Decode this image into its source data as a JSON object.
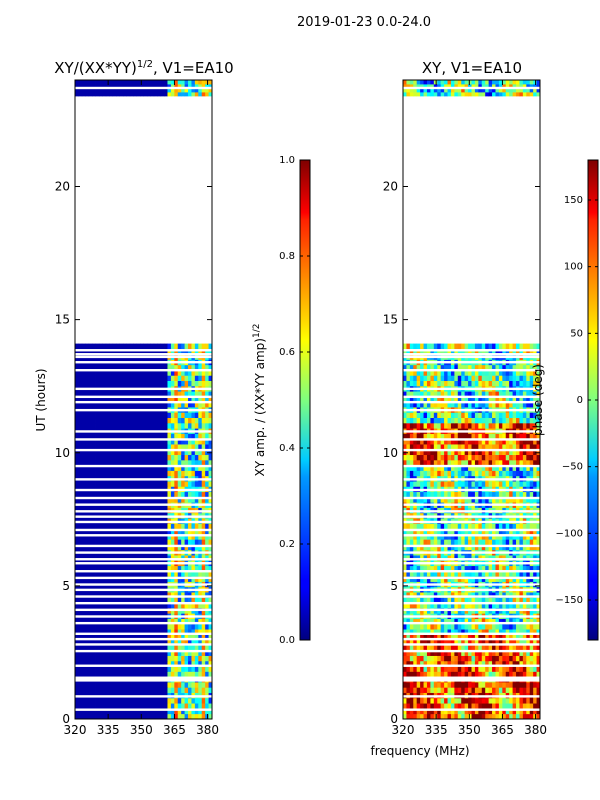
{
  "figure_title": "2019-01-23 0.0-24.0",
  "shared_xlabel": "frequency (MHz)",
  "chart_data": [
    {
      "type": "heatmap",
      "title": "XY/(XX*YY)^(1/2), V1=EA10",
      "title_main": "XY/(XX*YY)",
      "title_sup": "1/2",
      "title_tail": ", V1=EA10",
      "ylabel": "UT (hours)",
      "xlabel": "frequency (MHz)",
      "xlim": [
        320,
        382
      ],
      "ylim": [
        0,
        24
      ],
      "xticks": [
        320,
        335,
        350,
        365,
        380
      ],
      "yticks": [
        0,
        5,
        10,
        15,
        20
      ],
      "data_ranges_hours": [
        [
          0,
          14.1
        ],
        [
          23.4,
          24
        ]
      ],
      "colorbar": {
        "label": "XY amp. / (XX*YY amp)^(1/2)",
        "label_main": "XY amp. / (XX*YY amp)",
        "label_sup": "1/2",
        "range": [
          0.0,
          1.0
        ],
        "ticks": [
          "0.0",
          "0.2",
          "0.4",
          "0.6",
          "0.8",
          "1.0"
        ],
        "tick_values": [
          0.0,
          0.2,
          0.4,
          0.6,
          0.8,
          1.0
        ]
      }
    },
    {
      "type": "heatmap",
      "title": "XY, V1=EA10",
      "ylabel": "",
      "xlabel": "frequency (MHz)",
      "xlim": [
        320,
        382
      ],
      "ylim": [
        0,
        24
      ],
      "xticks": [
        320,
        335,
        350,
        365,
        380
      ],
      "yticks": [
        0,
        5,
        10,
        15,
        20
      ],
      "data_ranges_hours": [
        [
          0,
          14.1
        ],
        [
          23.4,
          24
        ]
      ],
      "colorbar": {
        "label": "phase (deg)",
        "range": [
          -180,
          180
        ],
        "ticks": [
          "−150",
          "−100",
          "−50",
          "0",
          "50",
          "100",
          "150"
        ],
        "tick_values": [
          -150,
          -100,
          -50,
          0,
          50,
          100,
          150
        ]
      }
    }
  ]
}
